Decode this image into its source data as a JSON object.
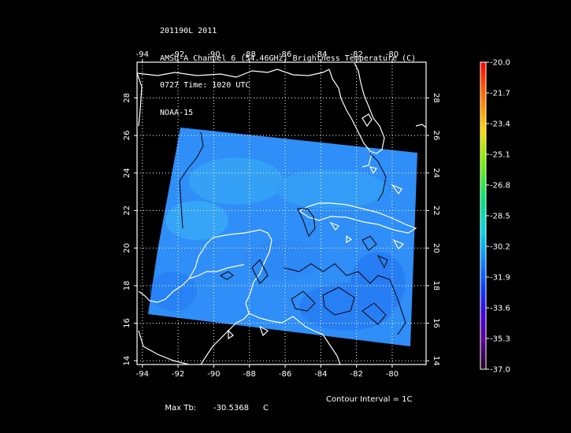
{
  "header": {
    "line1": "201190L 2011",
    "line2": "AMSU-A Channel 6 (54.46GHz) Brightness Temperature (C)",
    "line3": "0727 Time: 1020 UTC",
    "line4": "NOAA-15"
  },
  "map": {
    "lon_ticks": [
      "-94",
      "-92",
      "-90",
      "-88",
      "-86",
      "-84",
      "-82",
      "-80"
    ],
    "lat_ticks": [
      "14",
      "16",
      "18",
      "20",
      "22",
      "24",
      "26",
      "28"
    ],
    "lon_range": [
      -94.3,
      -78.1
    ],
    "lat_range": [
      13.8,
      29.9
    ],
    "swath_color": "#2a8cf5",
    "coast_color": "#ffffff",
    "contour_color": "#000000",
    "grid": "dotted white"
  },
  "colorbar": {
    "labels": [
      "-20.0",
      "-21.7",
      "-23.4",
      "-25.1",
      "-26.8",
      "-28.5",
      "-30.2",
      "-31.9",
      "-33.6",
      "-35.3",
      "-37.0"
    ],
    "max": -20.0,
    "min": -37.0
  },
  "footer": {
    "max_label": "Max Tb:",
    "max_value": "-30.5368",
    "max_unit": "C",
    "contour_text": "Contour Interval = 1C"
  }
}
